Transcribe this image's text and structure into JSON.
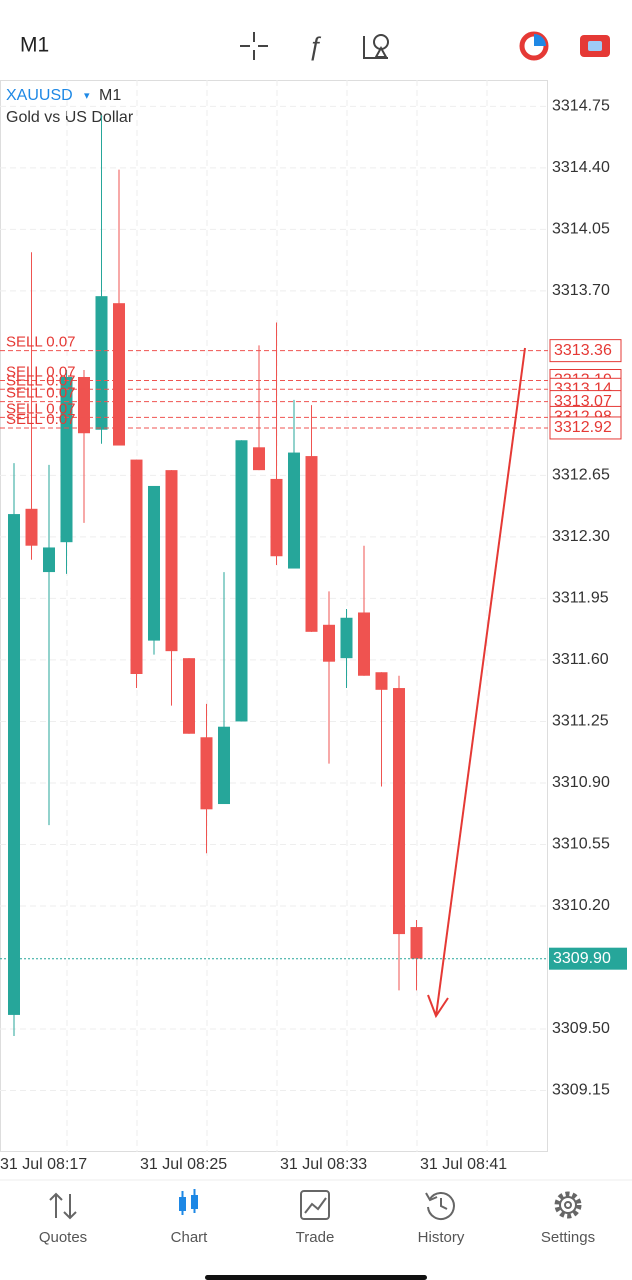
{
  "toolbar": {
    "timeframe": "M1"
  },
  "chart_data": {
    "type": "candlestick",
    "symbol": "XAUUSD",
    "timeframe": "M1",
    "description": "Gold vs US Dollar",
    "up_color": "#26a69a",
    "down_color": "#ef5350",
    "grid": true,
    "open": [
      3309.58,
      3312.46,
      3312.1,
      3312.27,
      3313.21,
      3312.91,
      3313.63,
      3312.74,
      3311.71,
      3312.68,
      3311.61,
      3311.16,
      3310.78,
      3311.25,
      3312.81,
      3312.63,
      3312.12,
      3312.76,
      3311.8,
      3311.61,
      3311.87,
      3311.53,
      3311.44,
      3310.08
    ],
    "high": [
      3312.72,
      3313.92,
      3312.71,
      3313.25,
      3313.25,
      3314.7,
      3314.39,
      3312.74,
      3312.59,
      3312.68,
      3311.61,
      3311.35,
      3312.1,
      3312.85,
      3313.39,
      3313.52,
      3313.08,
      3313.05,
      3311.99,
      3311.89,
      3312.25,
      3311.53,
      3311.51,
      3310.12
    ],
    "low": [
      3309.46,
      3312.17,
      3310.66,
      3312.09,
      3312.38,
      3312.83,
      3312.82,
      3311.44,
      3311.63,
      3311.34,
      3311.18,
      3310.5,
      3310.78,
      3311.25,
      3312.68,
      3312.14,
      3312.12,
      3311.76,
      3311.01,
      3311.44,
      3311.51,
      3310.88,
      3309.72,
      3309.72
    ],
    "close": [
      3312.43,
      3312.25,
      3312.24,
      3313.21,
      3312.89,
      3313.67,
      3312.82,
      3311.52,
      3312.59,
      3311.65,
      3311.18,
      3310.75,
      3311.22,
      3312.85,
      3312.68,
      3312.19,
      3312.78,
      3311.76,
      3311.59,
      3311.84,
      3311.51,
      3311.43,
      3310.04,
      3309.9
    ],
    "ylim": [
      3308.8,
      3314.9
    ],
    "yticks": [
      {
        "value": 3314.75,
        "label": "3314.75"
      },
      {
        "value": 3314.4,
        "label": "3314.40"
      },
      {
        "value": 3314.05,
        "label": "3314.05"
      },
      {
        "value": 3313.7,
        "label": "3313.70"
      },
      {
        "value": 3312.65,
        "label": "3312.65"
      },
      {
        "value": 3312.3,
        "label": "3312.30"
      },
      {
        "value": 3311.95,
        "label": "3311.95"
      },
      {
        "value": 3311.6,
        "label": "3311.60"
      },
      {
        "value": 3311.25,
        "label": "3311.25"
      },
      {
        "value": 3310.9,
        "label": "3310.90"
      },
      {
        "value": 3310.55,
        "label": "3310.55"
      },
      {
        "value": 3310.2,
        "label": "3310.20"
      },
      {
        "value": 3309.5,
        "label": "3309.50"
      },
      {
        "value": 3309.15,
        "label": "3309.15"
      }
    ],
    "x_labels": [
      "31 Jul 08:17",
      "31 Jul 08:25",
      "31 Jul 08:33",
      "31 Jul 08:41"
    ],
    "orders": [
      {
        "label": "SELL 0.07",
        "price": 3313.36
      },
      {
        "label": "SELL 0.07",
        "price": 3313.19
      },
      {
        "label": "SELL 0.07",
        "price": 3313.14
      },
      {
        "label": "SELL 0.07",
        "price": 3313.07
      },
      {
        "label": "SELL 0.07",
        "price": 3312.98
      },
      {
        "label": "SELL 0.07",
        "price": 3312.92
      }
    ],
    "current_price": {
      "value": 3309.9,
      "label": "3309.90"
    }
  },
  "tabs": [
    "Quotes",
    "Chart",
    "Trade",
    "History",
    "Settings"
  ]
}
